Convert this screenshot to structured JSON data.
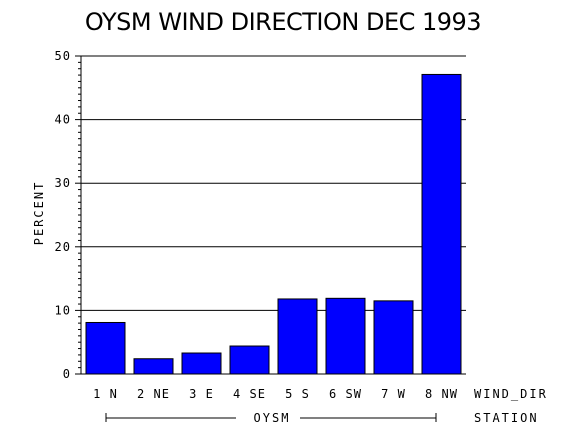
{
  "chart_data": {
    "type": "bar",
    "title": "OYSM WIND DIRECTION DEC 1993",
    "ylabel": "PERCENT",
    "xlabel": "WIND_DIR",
    "group_label": "STATION",
    "group_name": "OYSM",
    "categories": [
      "1 N",
      "2 NE",
      "3 E",
      "4 SE",
      "5 S",
      "6 SW",
      "7 W",
      "8 NW"
    ],
    "values": [
      8.1,
      2.4,
      3.3,
      4.4,
      11.8,
      11.9,
      11.5,
      47.1
    ],
    "ylim": [
      0,
      50
    ],
    "yticks": [
      "0",
      "10",
      "20",
      "30",
      "40",
      "50"
    ],
    "grid": true,
    "bar_color": "#0000ff"
  }
}
